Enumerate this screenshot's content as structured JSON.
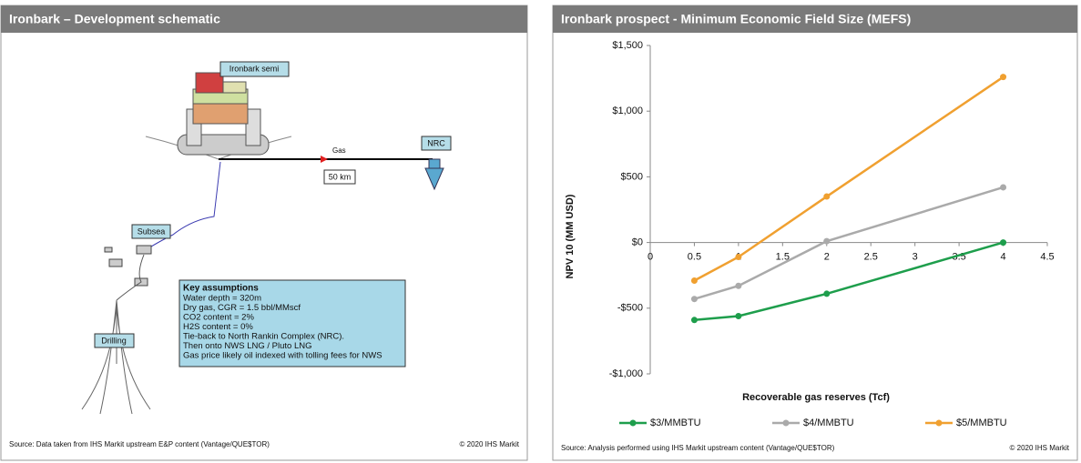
{
  "left_panel": {
    "title": "Ironbark – Development schematic",
    "labels": {
      "semi": "Ironbark semi",
      "gas": "Gas",
      "distance": "50 km",
      "nrc": "NRC",
      "subsea": "Subsea",
      "drilling": "Drilling"
    },
    "assumptions": {
      "heading": "Key assumptions",
      "lines": [
        "Water depth = 320m",
        "Dry gas, CGR = 1.5 bbl/MMscf",
        "CO2 content = 2%",
        "H2S content = 0%",
        "Tie-back to North Rankin Complex (NRC).",
        "Then onto NWS LNG / Pluto LNG",
        "Gas price likely oil indexed with tolling fees for NWS"
      ]
    },
    "source": "Source:  Data taken  from IHS Markit upstream E&P content (Vantage/QUE$TOR)",
    "copyright": "© 2020  IHS Markit"
  },
  "right_panel": {
    "source": "Source:  Analysis performed using IHS Markit upstream content (Vantage/QUE$TOR)",
    "copyright": "© 2020  IHS Markit"
  },
  "chart_data": {
    "type": "line",
    "title": "Ironbark prospect - Minimum  Economic Field Size (MEFS)",
    "x_label": "Recoverable gas reserves (Tcf)",
    "y_label": "NPV 10 (MM USD)",
    "x": [
      0.5,
      1,
      2,
      4
    ],
    "series": [
      {
        "name": "$3/MMBTU",
        "color": "#1e9e4c",
        "values": [
          -590,
          -560,
          -390,
          0
        ]
      },
      {
        "name": "$4/MMBTU",
        "color": "#aaaaaa",
        "values": [
          -430,
          -330,
          10,
          420
        ]
      },
      {
        "name": "$5/MMBTU",
        "color": "#f0a030",
        "values": [
          -290,
          -110,
          350,
          1260
        ]
      }
    ],
    "xlim": [
      0,
      4.5
    ],
    "xticks": [
      0,
      0.5,
      1,
      1.5,
      2,
      2.5,
      3,
      3.5,
      4,
      4.5
    ],
    "ylim": [
      -1000,
      1500
    ],
    "yticks": [
      {
        "value": -1000,
        "label": "-$1,000"
      },
      {
        "value": -500,
        "label": "-$500"
      },
      {
        "value": 0,
        "label": "$0"
      },
      {
        "value": 500,
        "label": "$500"
      },
      {
        "value": 1000,
        "label": "$1,000"
      },
      {
        "value": 1500,
        "label": "$1,500"
      }
    ],
    "legend": "bottom",
    "grid": false
  }
}
